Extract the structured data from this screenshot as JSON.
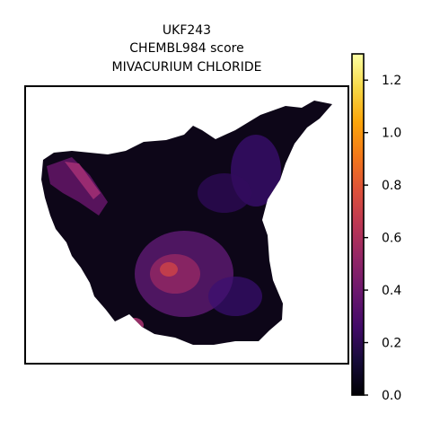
{
  "chart_data": {
    "type": "heatmap",
    "subtype": "spatial-hexbin",
    "title_lines": [
      "UKF243",
      "CHEMBL984 score",
      "MIVACURIUM CHLORIDE"
    ],
    "xlabel": "",
    "ylabel": "",
    "colormap": "inferno",
    "colorbar": {
      "range": [
        0.0,
        1.3
      ],
      "ticks": [
        0.0,
        0.2,
        0.4,
        0.6,
        0.8,
        1.0,
        1.2
      ],
      "tick_labels": [
        "0.0",
        "0.2",
        "0.4",
        "0.6",
        "0.8",
        "1.0",
        "1.2"
      ],
      "placement": "right"
    },
    "score_summary": {
      "min": 0.0,
      "max": 1.3,
      "typical_range": [
        0.0,
        0.5
      ],
      "high_regions": [
        "upper-left arm",
        "lower-center cluster"
      ]
    },
    "grid": false,
    "axes_visible": false
  }
}
